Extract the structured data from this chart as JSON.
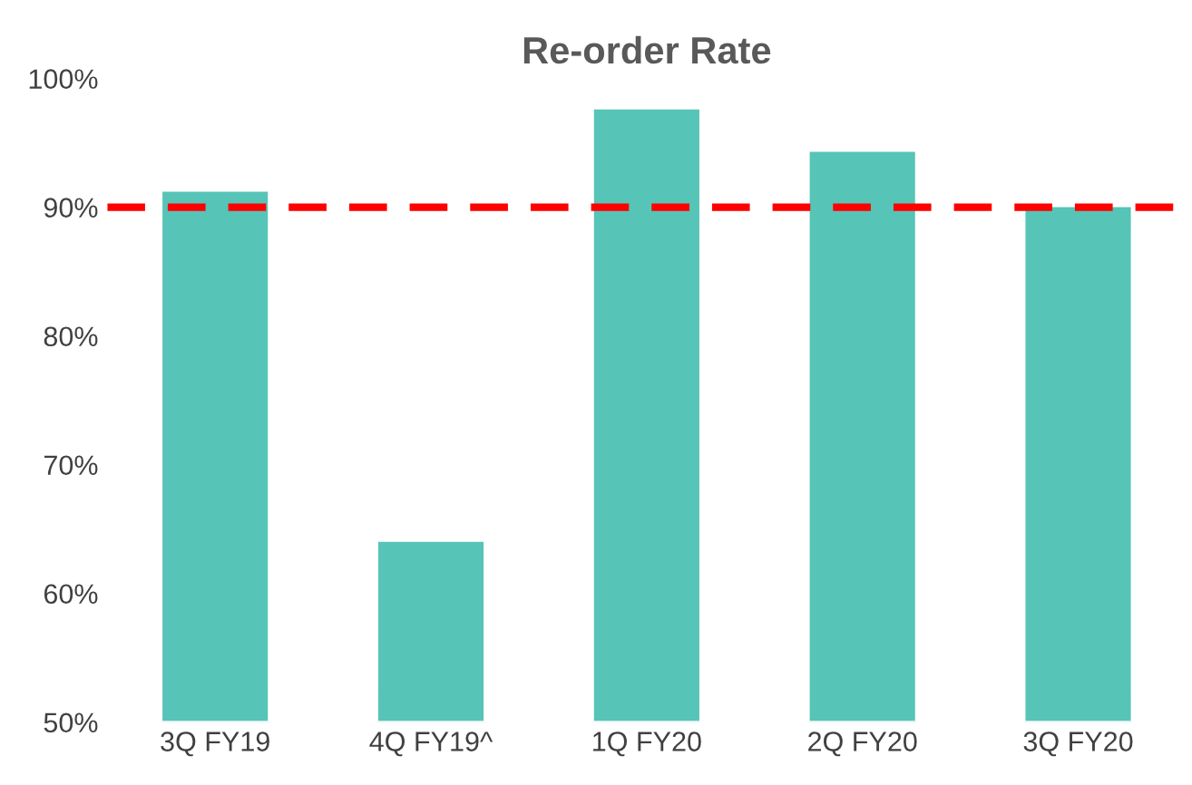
{
  "chart_data": {
    "type": "bar",
    "title": "Re-order Rate",
    "categories": [
      "3Q FY19",
      "4Q FY19^",
      "1Q FY20",
      "2Q FY20",
      "3Q FY20"
    ],
    "values": [
      91.3,
      64.1,
      97.7,
      94.4,
      90.1
    ],
    "color": "#56c4b6",
    "ylim": [
      50,
      100
    ],
    "yticks": [
      {
        "value": 50,
        "label": "50%"
      },
      {
        "value": 60,
        "label": "60%"
      },
      {
        "value": 70,
        "label": "70%"
      },
      {
        "value": 80,
        "label": "80%"
      },
      {
        "value": 90,
        "label": "90%"
      },
      {
        "value": 100,
        "label": "100%"
      }
    ],
    "grid": false,
    "ref_lines": [
      {
        "axis": "y",
        "value": 90,
        "color": "#ff0000",
        "line_style": "dashed"
      }
    ]
  }
}
